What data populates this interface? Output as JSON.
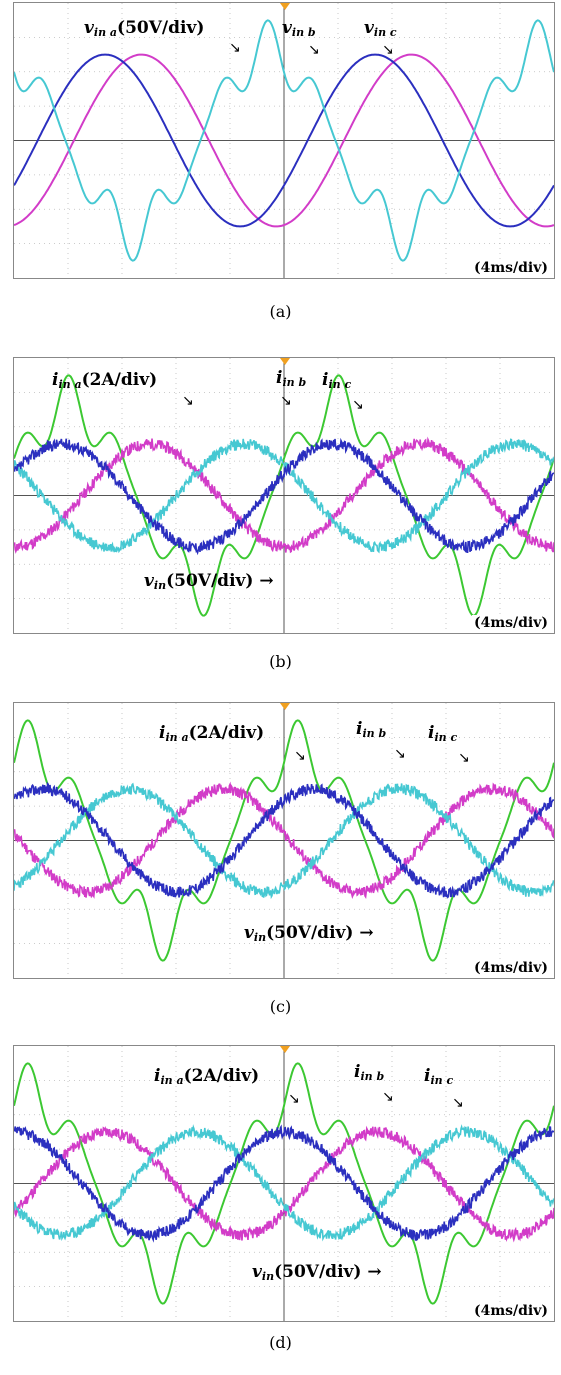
{
  "chart_data": [
    {
      "type": "line",
      "caption": "(a)",
      "timebase": "(4ms/div)",
      "grid": true,
      "labels": {
        "va": "v",
        "va_sub": "in a",
        "va_scale": "(50V/div)",
        "vb": "v",
        "vb_sub": "in b",
        "vc": "v",
        "vc_sub": "in c"
      },
      "series": [
        {
          "color": "#2b2fbf",
          "amplitude_div": 2.5,
          "phase_deg": 0
        },
        {
          "color": "#d23cc8",
          "amplitude_div": 2.5,
          "phase_deg": -120
        },
        {
          "color": "#46c8d2",
          "amplitude_div": 3,
          "phase_deg": 120,
          "harmonic": true
        }
      ]
    },
    {
      "type": "line",
      "caption": "(b)",
      "timebase": "(4ms/div)",
      "grid": true,
      "labels": {
        "ia": "i",
        "ia_sub": "in a",
        "ia_scale": "(2A/div)",
        "ib": "i",
        "ib_sub": "in b",
        "ic": "i",
        "ic_sub": "in c",
        "v": "v",
        "v_sub": "in",
        "v_scale": "(50V/div)"
      },
      "series": [
        {
          "color": "#2b2fbf",
          "amplitude_div": 1.5,
          "noisy": true
        },
        {
          "color": "#d23cc8",
          "amplitude_div": 1.5,
          "noisy": true
        },
        {
          "color": "#46c8d2",
          "amplitude_div": 1.5,
          "noisy": true
        },
        {
          "color": "#3cc832",
          "amplitude_div": 3,
          "harmonic": true
        }
      ]
    },
    {
      "type": "line",
      "caption": "(c)",
      "timebase": "(4ms/div)",
      "grid": true,
      "labels": {
        "ia": "i",
        "ia_sub": "in a",
        "ia_scale": "(2A/div)",
        "ib": "i",
        "ib_sub": "in b",
        "ic": "i",
        "ic_sub": "in c",
        "v": "v",
        "v_sub": "in",
        "v_scale": "(50V/div)"
      },
      "series": [
        {
          "color": "#2b2fbf",
          "amplitude_div": 1.5,
          "noisy": true
        },
        {
          "color": "#d23cc8",
          "amplitude_div": 1.5,
          "noisy": true
        },
        {
          "color": "#46c8d2",
          "amplitude_div": 1.5,
          "noisy": true
        },
        {
          "color": "#3cc832",
          "amplitude_div": 3,
          "harmonic": true
        }
      ]
    },
    {
      "type": "line",
      "caption": "(d)",
      "timebase": "(4ms/div)",
      "grid": true,
      "labels": {
        "ia": "i",
        "ia_sub": "in a",
        "ia_scale": "(2A/div)",
        "ib": "i",
        "ib_sub": "in b",
        "ic": "i",
        "ic_sub": "in c",
        "v": "v",
        "v_sub": "in",
        "v_scale": "(50V/div)"
      },
      "series": [
        {
          "color": "#2b2fbf",
          "amplitude_div": 1.5,
          "noisy": true
        },
        {
          "color": "#d23cc8",
          "amplitude_div": 1.5,
          "noisy": true
        },
        {
          "color": "#46c8d2",
          "amplitude_div": 1.5,
          "noisy": true
        },
        {
          "color": "#3cc832",
          "amplitude_div": 3,
          "harmonic": true
        }
      ]
    }
  ]
}
